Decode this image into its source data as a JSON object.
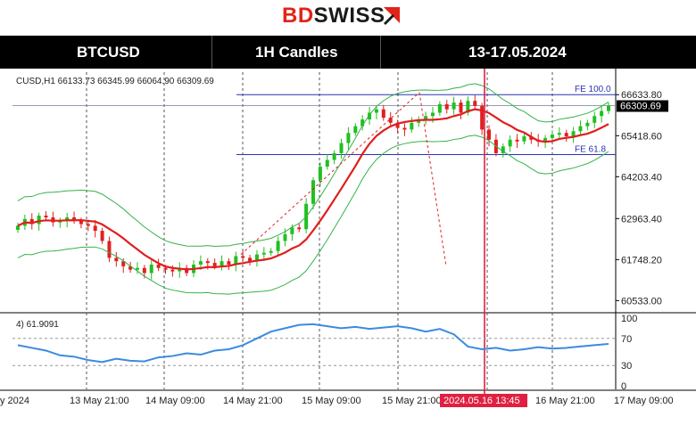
{
  "brand": {
    "bd": "BD",
    "swiss": "SWISS"
  },
  "header": {
    "symbol": "BTCUSD",
    "timeframe": "1H Candles",
    "dates": "13-17.05.2024"
  },
  "chart_data": {
    "type": "candlestick",
    "info_line": "CUSD,H1  66133.73 66345.99 66064.90 66309.69",
    "price_ticks": [
      "66633.80",
      "65418.60",
      "64203.40",
      "62963.40",
      "61748.20",
      "60533.00"
    ],
    "current_price": "66309.69",
    "fib_levels": [
      {
        "label": "FE 100.0",
        "price": 66633.8
      },
      {
        "label": "FE 61.8",
        "price": 64860
      }
    ],
    "rsi_label": "4) 61.9091",
    "rsi_ticks": [
      "100",
      "70",
      "30",
      "0"
    ],
    "time_labels": [
      "y 2024",
      "13 May 21:00",
      "14 May 09:00",
      "14 May 21:00",
      "15 May 09:00",
      "15 May 21:00",
      "2024.05.16 13:45",
      "16 May 21:00",
      "17 May 09:00"
    ],
    "highlight_time": "2024.05.16 13:45",
    "close_path": [
      62750,
      62950,
      62800,
      63050,
      63000,
      62850,
      62900,
      63000,
      62900,
      62800,
      62750,
      62600,
      62300,
      61800,
      61700,
      61550,
      61450,
      61500,
      61350,
      61600,
      61500,
      61450,
      61400,
      61500,
      61350,
      61600,
      61700,
      61650,
      61550,
      61700,
      61600,
      61850,
      61800,
      61700,
      61900,
      61950,
      62000,
      62300,
      62500,
      62700,
      62650,
      63400,
      64100,
      64500,
      64700,
      64900,
      65200,
      65500,
      65700,
      65900,
      66100,
      66200,
      65950,
      65800,
      65650,
      65600,
      65800,
      65900,
      66000,
      66100,
      66350,
      66200,
      66400,
      66100,
      66450,
      66300,
      65600,
      65300,
      64900,
      65100,
      65300,
      65250,
      65400,
      65300,
      65250,
      65350,
      65450,
      65500,
      65400,
      65550,
      65700,
      65800,
      66000,
      66150,
      66309.69
    ],
    "rsi_values": [
      60,
      56,
      52,
      45,
      43,
      38,
      35,
      40,
      37,
      36,
      42,
      44,
      48,
      46,
      52,
      54,
      60,
      70,
      80,
      85,
      90,
      91,
      88,
      85,
      87,
      84,
      86,
      88,
      85,
      80,
      84,
      76,
      58,
      54,
      56,
      52,
      54,
      57,
      55,
      56,
      58,
      60,
      61.9
    ],
    "colors": {
      "bull": "#20c020",
      "bear": "#e02020",
      "ma": "#e21d1d",
      "bands": "#35b24a",
      "rsi": "#3b8be0",
      "fib": "#2b33b5",
      "marker": "#e02040"
    }
  }
}
